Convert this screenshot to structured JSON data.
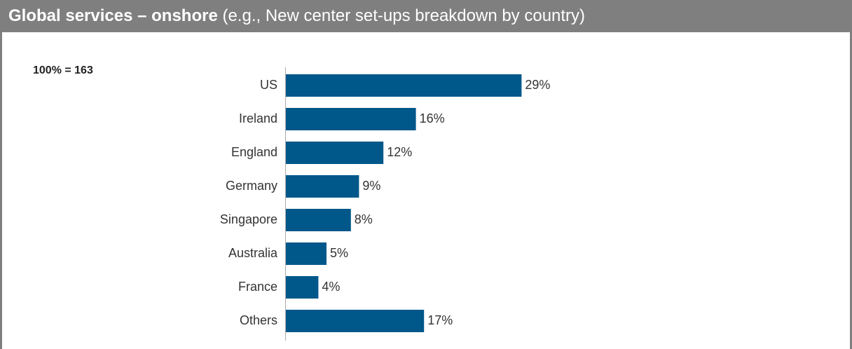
{
  "chart_data": {
    "type": "bar",
    "orientation": "horizontal",
    "title": "Global services – onshore",
    "subtitle": "(e.g., New center set-ups breakdown by country)",
    "annotation": "100% = 163",
    "categories": [
      "US",
      "Ireland",
      "England",
      "Germany",
      "Singapore",
      "Australia",
      "France",
      "Others"
    ],
    "values": [
      29,
      16,
      12,
      9,
      8,
      5,
      4,
      17
    ],
    "value_labels": [
      "29%",
      "16%",
      "12%",
      "9%",
      "8%",
      "5%",
      "4%",
      "17%"
    ],
    "color": "#00578a"
  }
}
